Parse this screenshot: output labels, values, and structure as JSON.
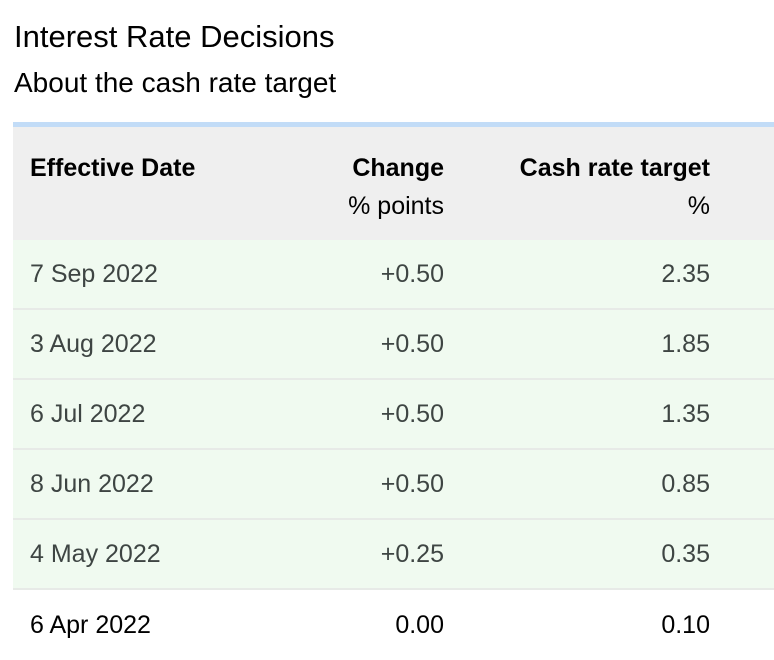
{
  "header": {
    "title": "Interest Rate Decisions",
    "subtitle": "About the cash rate target"
  },
  "table": {
    "columns": [
      {
        "label": "Effective Date",
        "unit": ""
      },
      {
        "label": "Change",
        "unit": "% points"
      },
      {
        "label": "Cash rate target",
        "unit": "%"
      }
    ],
    "rows": [
      {
        "date": "7 Sep 2022",
        "change": "+0.50",
        "target": "2.35"
      },
      {
        "date": "3 Aug 2022",
        "change": "+0.50",
        "target": "1.85"
      },
      {
        "date": "6 Jul 2022",
        "change": "+0.50",
        "target": "1.35"
      },
      {
        "date": "8 Jun 2022",
        "change": "+0.50",
        "target": "0.85"
      },
      {
        "date": "4 May 2022",
        "change": "+0.25",
        "target": "0.35"
      },
      {
        "date": "6 Apr 2022",
        "change": "0.00",
        "target": "0.10"
      }
    ]
  },
  "colors": {
    "accent_bar": "#c2dcf7",
    "header_bg": "#efefef",
    "row_highlight_bg": "#f0faf0",
    "row_divider": "#e7eae7",
    "row_text": "#3e4543",
    "last_row_text": "#000000"
  }
}
